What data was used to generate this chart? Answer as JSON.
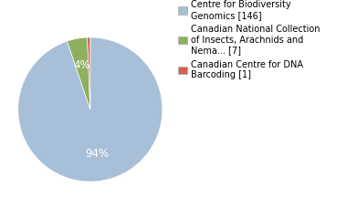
{
  "labels": [
    "Centre for Biodiversity\nGenomics [146]",
    "Canadian National Collection\nof Insects, Arachnids and\nNema... [7]",
    "Canadian Centre for DNA\nBarcoding [1]"
  ],
  "values": [
    146,
    7,
    1
  ],
  "colors": [
    "#a8bfd8",
    "#8db060",
    "#d9604a"
  ],
  "pct_labels": [
    "94%",
    "4%",
    ""
  ],
  "startangle": 90,
  "background_color": "#ffffff",
  "legend_fontsize": 7.0,
  "pct_fontsize": 8.5
}
